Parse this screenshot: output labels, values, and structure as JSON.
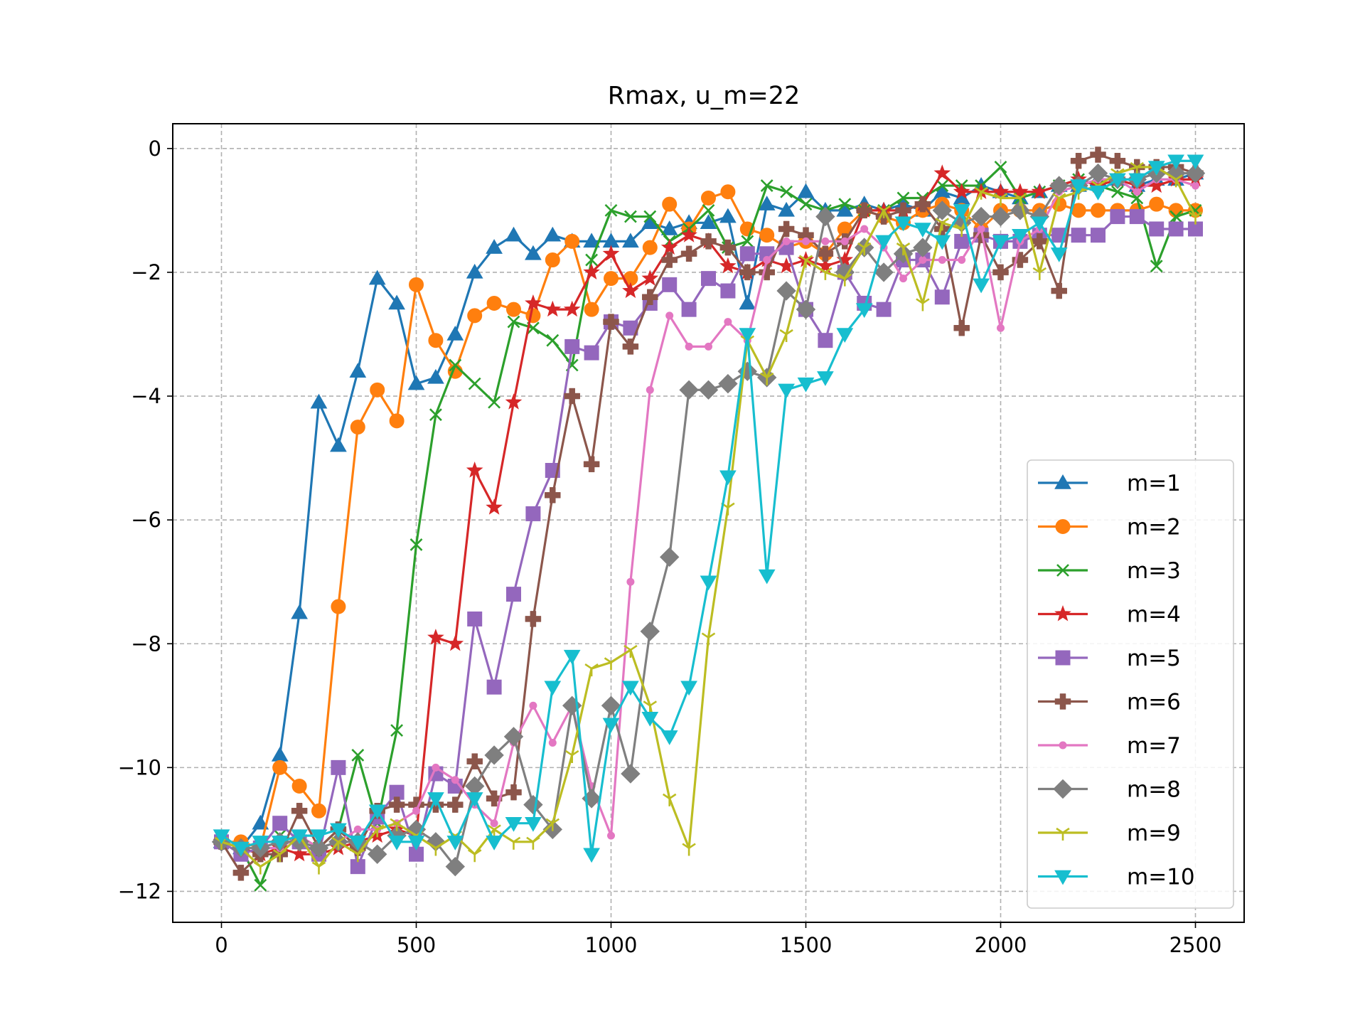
{
  "chart_data": {
    "type": "line",
    "title": "Rmax, u_m=22",
    "xlabel": "",
    "ylabel": "",
    "xlim": [
      -125,
      2625
    ],
    "ylim": [
      -12.5,
      0.4
    ],
    "xticks": [
      0,
      500,
      1000,
      1500,
      2000,
      2500
    ],
    "yticks": [
      0,
      -2,
      -4,
      -6,
      -8,
      -10,
      -12
    ],
    "xtick_labels": [
      "0",
      "500",
      "1000",
      "1500",
      "2000",
      "2500"
    ],
    "ytick_labels": [
      "0",
      "−2",
      "−4",
      "−6",
      "−8",
      "−10",
      "−12"
    ],
    "grid": true,
    "legend_position": "lower-right",
    "x": [
      0,
      50,
      100,
      150,
      200,
      250,
      300,
      350,
      400,
      450,
      500,
      550,
      600,
      650,
      700,
      750,
      800,
      850,
      900,
      950,
      1000,
      1050,
      1100,
      1150,
      1200,
      1250,
      1300,
      1350,
      1400,
      1450,
      1500,
      1550,
      1600,
      1650,
      1700,
      1750,
      1800,
      1850,
      1900,
      1950,
      2000,
      2050,
      2100,
      2150,
      2200,
      2250,
      2300,
      2350,
      2400,
      2450,
      2500
    ],
    "series": [
      {
        "name": "m=1",
        "color": "#1f77b4",
        "marker": "triangle-up",
        "values": [
          -11.2,
          -11.3,
          -10.9,
          -9.8,
          -7.5,
          -4.1,
          -4.8,
          -3.6,
          -2.1,
          -2.5,
          -3.8,
          -3.7,
          -3.0,
          -2.0,
          -1.6,
          -1.4,
          -1.7,
          -1.4,
          -1.5,
          -1.5,
          -1.5,
          -1.5,
          -1.2,
          -1.3,
          -1.2,
          -1.2,
          -1.1,
          -2.5,
          -0.9,
          -1.0,
          -0.7,
          -1.0,
          -1.0,
          -0.9,
          -1.0,
          -0.9,
          -1.0,
          -0.7,
          -0.8,
          -0.6,
          -0.7,
          -0.8,
          -0.7,
          -0.6,
          -0.6,
          -0.5,
          -0.5,
          -0.6,
          -0.5,
          -0.5,
          -0.4
        ]
      },
      {
        "name": "m=2",
        "color": "#ff7f0e",
        "marker": "circle",
        "values": [
          -11.2,
          -11.2,
          -11.3,
          -10.0,
          -10.3,
          -10.7,
          -7.4,
          -4.5,
          -3.9,
          -4.4,
          -2.2,
          -3.1,
          -3.6,
          -2.7,
          -2.5,
          -2.6,
          -2.7,
          -1.8,
          -1.5,
          -2.6,
          -2.1,
          -2.1,
          -1.6,
          -0.9,
          -1.3,
          -0.8,
          -0.7,
          -1.3,
          -1.4,
          -1.6,
          -1.5,
          -1.7,
          -1.3,
          -1.0,
          -1.1,
          -1.2,
          -1.0,
          -0.9,
          -1.0,
          -1.3,
          -1.0,
          -1.0,
          -1.0,
          -0.9,
          -1.0,
          -1.0,
          -1.0,
          -1.0,
          -0.9,
          -1.0,
          -1.0
        ]
      },
      {
        "name": "m=3",
        "color": "#2ca02c",
        "marker": "x",
        "values": [
          -11.2,
          -11.3,
          -11.9,
          -11.1,
          -11.2,
          -11.3,
          -11.0,
          -9.8,
          -10.9,
          -9.4,
          -6.4,
          -4.3,
          -3.5,
          -3.8,
          -4.1,
          -2.8,
          -2.9,
          -3.1,
          -3.5,
          -1.8,
          -1.0,
          -1.1,
          -1.1,
          -1.5,
          -1.3,
          -1.0,
          -1.6,
          -1.5,
          -0.6,
          -0.7,
          -0.9,
          -1.0,
          -0.9,
          -1.0,
          -1.0,
          -0.8,
          -0.8,
          -0.6,
          -0.6,
          -0.6,
          -0.3,
          -0.8,
          -0.7,
          -0.6,
          -0.5,
          -0.6,
          -0.7,
          -0.8,
          -1.9,
          -1.1,
          -1.0
        ]
      },
      {
        "name": "m=4",
        "color": "#d62728",
        "marker": "star",
        "values": [
          -11.2,
          -11.3,
          -11.4,
          -11.3,
          -11.4,
          -11.4,
          -11.3,
          -11.2,
          -11.1,
          -11.0,
          -11.1,
          -7.9,
          -8.0,
          -5.2,
          -5.8,
          -4.1,
          -2.5,
          -2.6,
          -2.6,
          -2.0,
          -1.7,
          -2.3,
          -2.1,
          -1.6,
          -1.4,
          -1.5,
          -1.9,
          -2.0,
          -1.8,
          -1.9,
          -1.8,
          -1.9,
          -1.8,
          -1.0,
          -1.0,
          -1.0,
          -0.9,
          -0.4,
          -0.7,
          -0.7,
          -0.7,
          -0.7,
          -0.7,
          -0.6,
          -0.5,
          -0.6,
          -0.5,
          -0.6,
          -0.6,
          -0.5,
          -0.5
        ]
      },
      {
        "name": "m=5",
        "color": "#9467bd",
        "marker": "square",
        "values": [
          -11.2,
          -11.4,
          -11.3,
          -10.9,
          -11.2,
          -11.4,
          -10.0,
          -11.6,
          -10.8,
          -10.4,
          -11.4,
          -10.1,
          -10.3,
          -7.6,
          -8.7,
          -7.2,
          -5.9,
          -5.2,
          -3.2,
          -3.3,
          -2.8,
          -2.9,
          -2.5,
          -2.2,
          -2.6,
          -2.1,
          -2.3,
          -1.7,
          -1.7,
          -1.6,
          -2.6,
          -3.1,
          -2.0,
          -2.5,
          -2.6,
          -1.8,
          -1.8,
          -2.4,
          -1.5,
          -1.4,
          -1.5,
          -1.5,
          -1.4,
          -1.4,
          -1.4,
          -1.4,
          -1.1,
          -1.1,
          -1.3,
          -1.3,
          -1.3
        ]
      },
      {
        "name": "m=6",
        "color": "#8c564b",
        "marker": "plus",
        "values": [
          -11.2,
          -11.7,
          -11.4,
          -11.4,
          -10.7,
          -11.3,
          -11.0,
          -11.3,
          -10.7,
          -10.6,
          -10.6,
          -10.6,
          -10.6,
          -9.9,
          -10.5,
          -10.4,
          -7.6,
          -5.6,
          -4.0,
          -5.1,
          -2.8,
          -3.2,
          -2.4,
          -1.8,
          -1.7,
          -1.5,
          -1.6,
          -2.0,
          -2.0,
          -1.3,
          -1.4,
          -1.7,
          -1.5,
          -1.0,
          -1.1,
          -1.0,
          -0.9,
          -1.3,
          -2.9,
          -1.4,
          -2.0,
          -1.8,
          -1.5,
          -2.3,
          -0.2,
          -0.1,
          -0.2,
          -0.3,
          -0.3,
          -0.3,
          -0.4
        ]
      },
      {
        "name": "m=7",
        "color": "#e377c2",
        "marker": "dot",
        "values": [
          -11.2,
          -11.3,
          -11.3,
          -11.3,
          -11.1,
          -11.3,
          -11.2,
          -11.0,
          -11.0,
          -10.9,
          -10.7,
          -10.0,
          -10.2,
          -10.6,
          -10.9,
          -9.6,
          -9.0,
          -9.6,
          -9.0,
          -10.3,
          -11.1,
          -7.0,
          -3.9,
          -2.7,
          -3.2,
          -3.2,
          -2.8,
          -3.1,
          -1.8,
          -1.5,
          -1.5,
          -1.5,
          -1.5,
          -1.3,
          -1.6,
          -2.1,
          -1.8,
          -1.8,
          -1.8,
          -1.3,
          -2.9,
          -1.5,
          -1.3,
          -0.7,
          -0.6,
          -0.5,
          -0.5,
          -0.7,
          -0.5,
          -0.5,
          -0.6
        ]
      },
      {
        "name": "m=8",
        "color": "#7f7f7f",
        "marker": "diamond",
        "values": [
          -11.2,
          -11.3,
          -11.3,
          -11.2,
          -11.2,
          -11.3,
          -11.2,
          -11.2,
          -11.4,
          -11.1,
          -11.0,
          -11.2,
          -11.6,
          -10.3,
          -9.8,
          -9.5,
          -10.6,
          -11.0,
          -9.0,
          -10.5,
          -9.0,
          -10.1,
          -7.8,
          -6.6,
          -3.9,
          -3.9,
          -3.8,
          -3.6,
          -3.7,
          -2.3,
          -2.6,
          -1.1,
          -2.0,
          -1.6,
          -2.0,
          -1.7,
          -1.6,
          -1.0,
          -1.2,
          -1.1,
          -1.1,
          -1.0,
          -1.1,
          -0.6,
          -0.6,
          -0.4,
          -0.5,
          -0.5,
          -0.4,
          -0.4,
          -0.4
        ]
      },
      {
        "name": "m=9",
        "color": "#bcbd22",
        "marker": "tri-down",
        "values": [
          -11.2,
          -11.3,
          -11.6,
          -11.4,
          -11.1,
          -11.6,
          -11.2,
          -11.4,
          -11.0,
          -10.9,
          -11.1,
          -11.3,
          -11.1,
          -11.4,
          -11.0,
          -11.2,
          -11.2,
          -10.9,
          -9.8,
          -8.4,
          -8.3,
          -8.1,
          -9.0,
          -10.5,
          -11.3,
          -7.9,
          -5.8,
          -3.1,
          -3.7,
          -3.0,
          -1.8,
          -2.0,
          -2.1,
          -1.6,
          -1.0,
          -1.6,
          -2.5,
          -1.2,
          -1.3,
          -0.7,
          -0.8,
          -0.8,
          -2.0,
          -0.8,
          -0.7,
          -0.6,
          -0.4,
          -0.3,
          -0.3,
          -0.5,
          -1.1
        ]
      },
      {
        "name": "m=10",
        "color": "#17becf",
        "marker": "triangle-down",
        "values": [
          -11.1,
          -11.3,
          -11.2,
          -11.2,
          -11.1,
          -11.1,
          -11.0,
          -11.2,
          -10.7,
          -11.2,
          -11.2,
          -10.5,
          -11.2,
          -10.5,
          -11.2,
          -10.9,
          -10.9,
          -8.7,
          -8.2,
          -11.4,
          -9.3,
          -8.7,
          -9.2,
          -9.5,
          -8.7,
          -7.0,
          -5.3,
          -3.0,
          -6.9,
          -3.9,
          -3.8,
          -3.7,
          -3.0,
          -2.6,
          -1.5,
          -1.2,
          -1.3,
          -1.5,
          -1.0,
          -2.2,
          -1.5,
          -1.4,
          -1.2,
          -1.7,
          -0.6,
          -0.7,
          -0.5,
          -0.5,
          -0.3,
          -0.2,
          -0.2
        ]
      }
    ]
  }
}
